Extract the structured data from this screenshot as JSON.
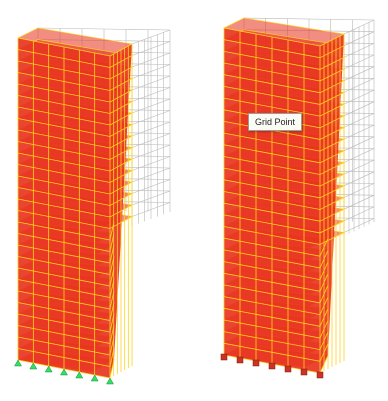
{
  "views": [
    {
      "support_style": "pinned",
      "support_color": "#33dd66"
    },
    {
      "support_style": "fixed",
      "support_color": "#cc3322"
    }
  ],
  "model": {
    "storeys": 28,
    "slab_color": "#e8301c",
    "frame_color": "#ffd21e",
    "column_color": "#f0a020",
    "ghost_color": "#b8b8b8"
  },
  "tooltip": {
    "text": "Grid Point"
  }
}
